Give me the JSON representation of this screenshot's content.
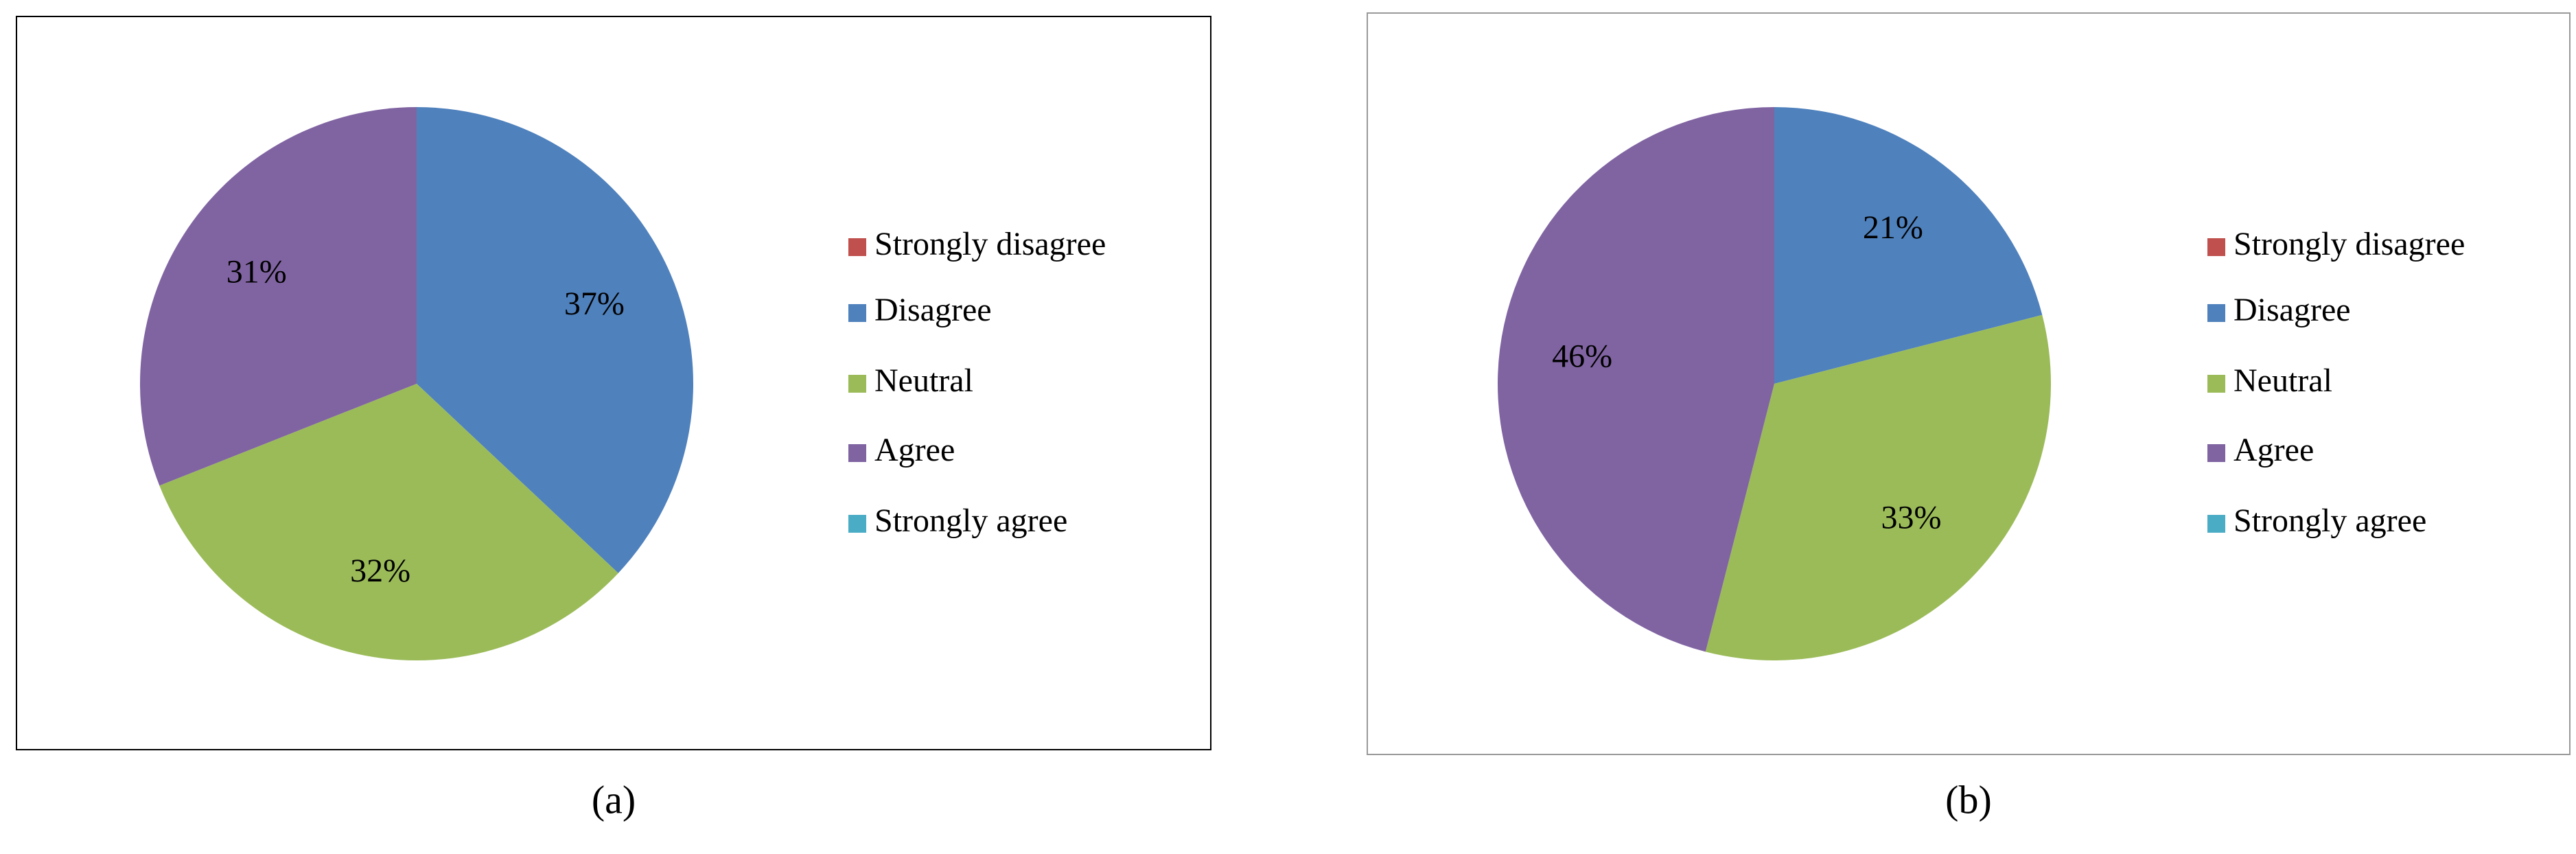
{
  "chart_data": [
    {
      "type": "pie",
      "caption": "(a)",
      "categories": [
        "Strongly disagree",
        "Disagree",
        "Neutral",
        "Agree",
        "Strongly agree"
      ],
      "values": [
        0,
        37,
        32,
        31,
        0
      ],
      "value_labels": [
        null,
        "37%",
        "32%",
        "31%",
        null
      ],
      "colors": [
        "#c0504d",
        "#4f81bd",
        "#9bbb59",
        "#8064a2",
        "#4bacc6"
      ]
    },
    {
      "type": "pie",
      "caption": "(b)",
      "categories": [
        "Strongly disagree",
        "Disagree",
        "Neutral",
        "Agree",
        "Strongly agree"
      ],
      "values": [
        0,
        21,
        33,
        46,
        0
      ],
      "value_labels": [
        null,
        "21%",
        "33%",
        "46%",
        null
      ],
      "colors": [
        "#c0504d",
        "#4f81bd",
        "#9bbb59",
        "#8064a2",
        "#4bacc6"
      ]
    }
  ]
}
